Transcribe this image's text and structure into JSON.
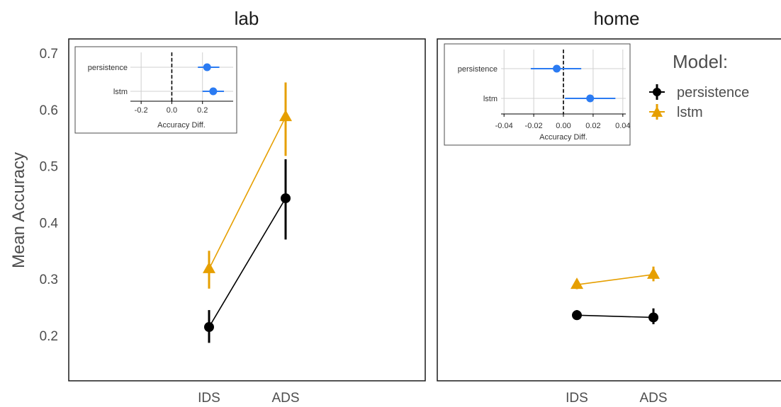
{
  "chart_data": {
    "type": "scatter",
    "ylabel": "Mean Accuracy",
    "ylim": [
      0.15,
      0.72
    ],
    "yticks": [
      "0.2",
      "0.3",
      "0.4",
      "0.5",
      "0.6",
      "0.7"
    ],
    "categories": [
      "IDS",
      "ADS"
    ],
    "legend": {
      "title": "Model:",
      "placement": "top-right",
      "entries": [
        "persistence",
        "lstm"
      ]
    },
    "colors": {
      "persistence": "#000000",
      "lstm": "#E69F00",
      "inset_point": "#2B7BF2"
    },
    "panels": [
      {
        "title": "lab",
        "series": [
          {
            "name": "persistence",
            "marker": "circle",
            "values": [
              0.215,
              0.443
            ],
            "lower": [
              0.187,
              0.37
            ],
            "upper": [
              0.245,
              0.512
            ]
          },
          {
            "name": "lstm",
            "marker": "triangle",
            "values": [
              0.318,
              0.587
            ],
            "lower": [
              0.283,
              0.518
            ],
            "upper": [
              0.35,
              0.648
            ]
          }
        ],
        "inset": {
          "xlabel": "Accuracy Diff.",
          "xlim": [
            -0.27,
            0.4
          ],
          "xticks": [
            "-0.2",
            "0.0",
            "0.2"
          ],
          "rows": [
            {
              "label": "persistence",
              "value": 0.23,
              "lower": 0.17,
              "upper": 0.31
            },
            {
              "label": "lstm",
              "value": 0.27,
              "lower": 0.2,
              "upper": 0.34
            }
          ]
        }
      },
      {
        "title": "home",
        "series": [
          {
            "name": "persistence",
            "marker": "circle",
            "values": [
              0.236,
              0.232
            ],
            "lower": [
              0.228,
              0.22
            ],
            "upper": [
              0.245,
              0.248
            ]
          },
          {
            "name": "lstm",
            "marker": "triangle",
            "values": [
              0.29,
              0.308
            ],
            "lower": [
              0.282,
              0.296
            ],
            "upper": [
              0.297,
              0.322
            ]
          }
        ],
        "inset": {
          "xlabel": "Accuracy Diff.",
          "xlim": [
            -0.042,
            0.042
          ],
          "xticks": [
            "-0.04",
            "-0.02",
            "0.00",
            "0.02",
            "0.04"
          ],
          "rows": [
            {
              "label": "persistence",
              "value": -0.0045,
              "lower": -0.022,
              "upper": 0.012
            },
            {
              "label": "lstm",
              "value": 0.018,
              "lower": 0.001,
              "upper": 0.035
            }
          ]
        }
      }
    ]
  }
}
